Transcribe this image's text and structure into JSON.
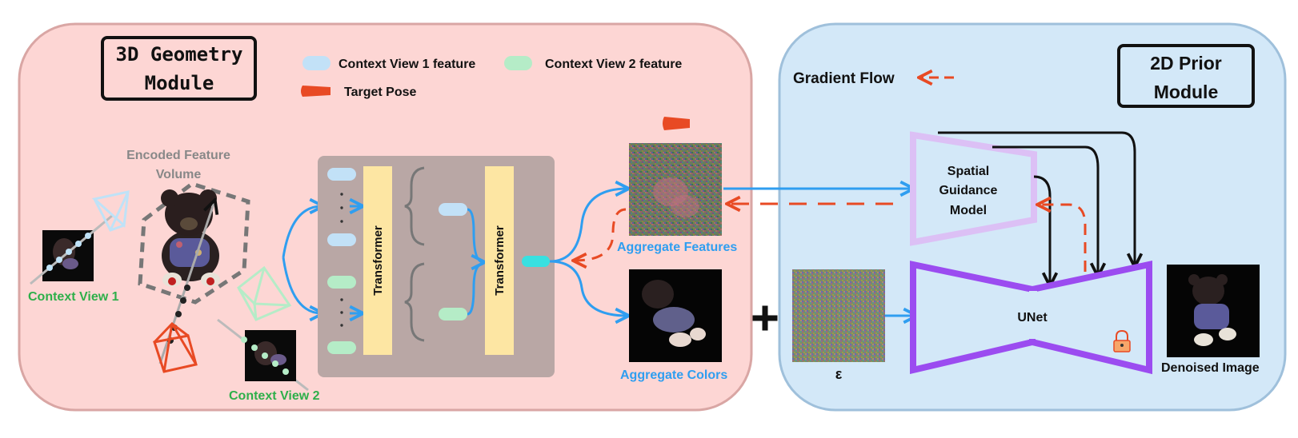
{
  "geometry_module": {
    "title_line1": "3D Geometry",
    "title_line2": "Module",
    "legend": {
      "view1": "Context View 1 feature",
      "view2": "Context View 2 feature",
      "target": "Target Pose"
    },
    "encoded_volume_line1": "Encoded Feature",
    "encoded_volume_line2": "Volume",
    "context_view_1": "Context View 1",
    "context_view_2": "Context View 2",
    "transformer_1": "Transformer",
    "transformer_2": "Transformer",
    "aggregate_features": "Aggregate Features",
    "aggregate_colors": "Aggregate Colors"
  },
  "prior_module": {
    "title_line1": "2D Prior",
    "title_line2": "Module",
    "gradient_flow": "Gradient Flow",
    "spatial_line1": "Spatial",
    "spatial_line2": "Guidance",
    "spatial_line3": "Model",
    "unet": "UNet",
    "epsilon": "ε",
    "denoised_image": "Denoised Image"
  },
  "colors": {
    "geometry_bg": "#fdd6d4",
    "geometry_border": "#d9a6a4",
    "prior_bg": "#d3e8f8",
    "prior_border": "#9fc0db",
    "transformer_block": "#fde6a3",
    "transformer_panel": "#b9a7a5",
    "view1_feature": "#c2e1f7",
    "view2_feature": "#b5ecc7",
    "target_pose": "#e84a24",
    "arrow_blue": "#2f9ef0",
    "gradient_red": "#e84a24",
    "unet_purple": "#9b4cf0",
    "spatial_lavender": "#dcc0f5",
    "label_green": "#2eaf4a",
    "label_blue": "#2f9ef0"
  }
}
